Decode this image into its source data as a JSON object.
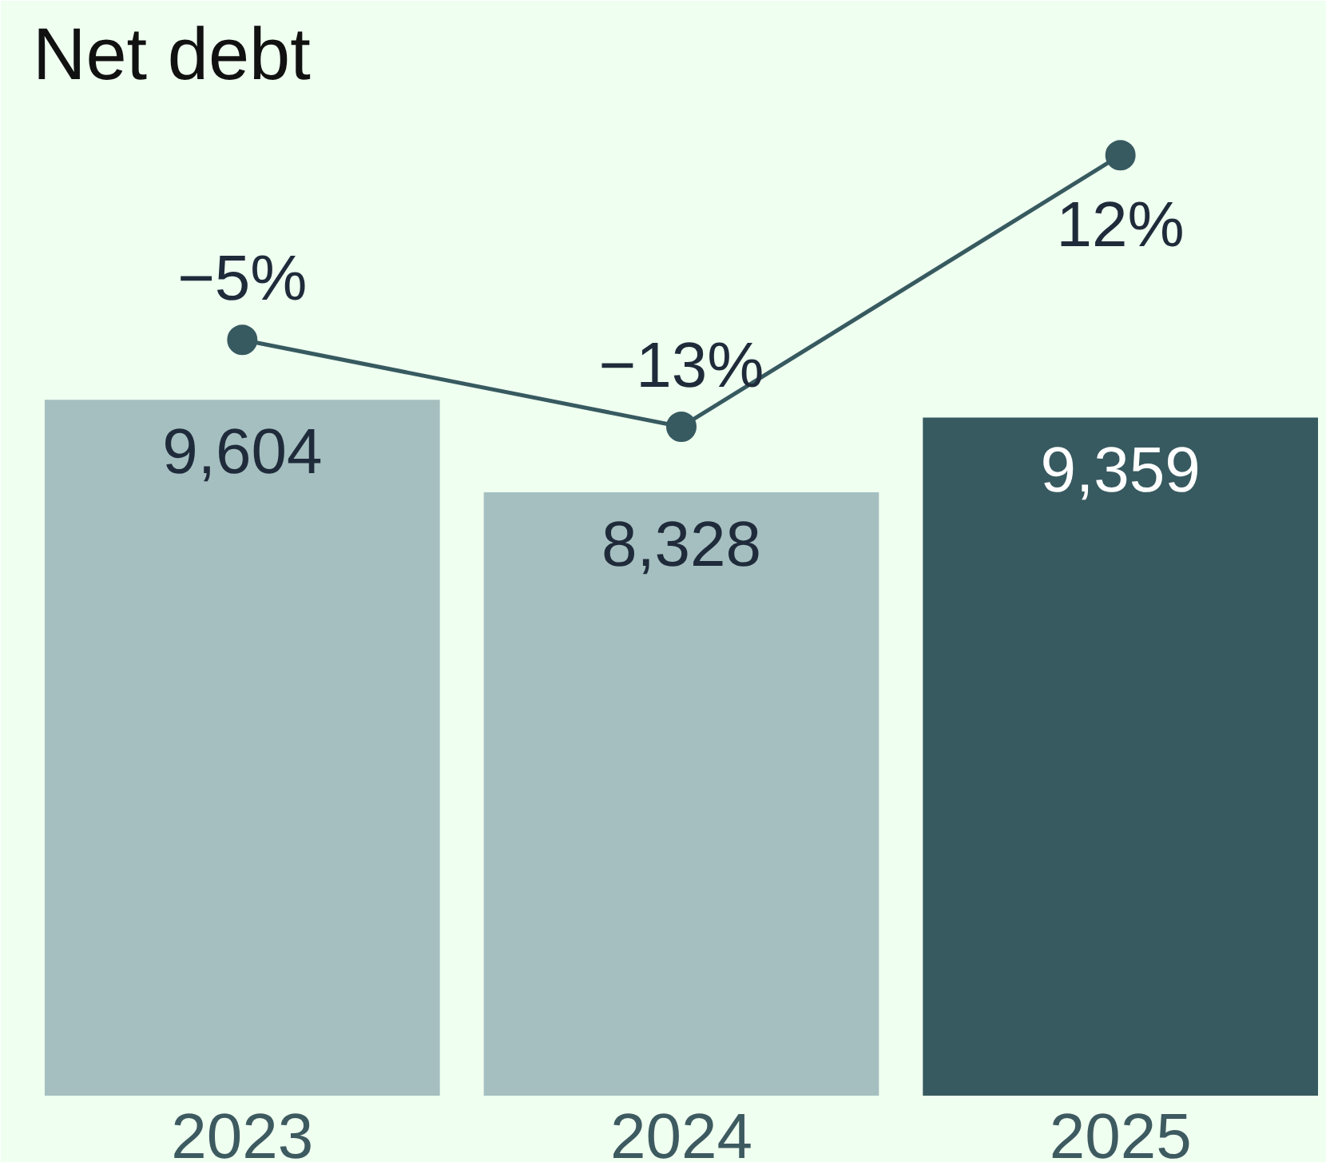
{
  "chart_data": {
    "type": "bar",
    "title": "Net debt",
    "categories": [
      "2023",
      "2024",
      "2025"
    ],
    "series": [
      {
        "colors": [
          "#a5bfc0",
          "#a5bfc0",
          "#375a60"
        ],
        "values": [
          9604,
          8328,
          9359
        ],
        "value_labels": [
          "9,604",
          "8,328",
          "9,359"
        ]
      },
      {
        "type": "line",
        "axis": "y2",
        "color": "#375a60",
        "marker": "circle",
        "values": [
          -5,
          -13,
          12
        ],
        "value_labels": [
          "−5%",
          "−13%",
          "12%"
        ]
      }
    ],
    "ylim": [
      0,
      13700
    ],
    "y2lim": [
      -74.6,
      16.8
    ],
    "tick_labels": "x",
    "grid": false
  }
}
